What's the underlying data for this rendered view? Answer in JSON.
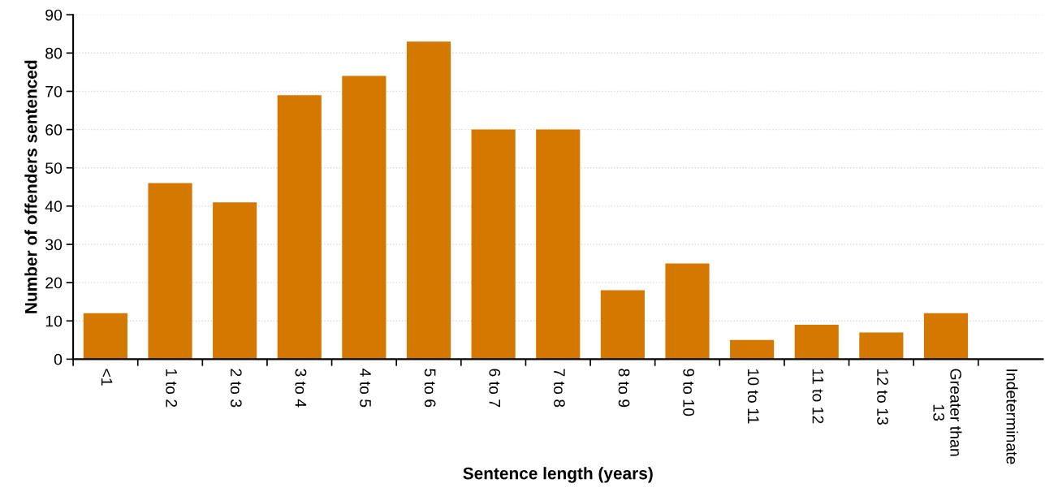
{
  "chart_data": {
    "type": "bar",
    "xlabel": "Sentence length (years)",
    "ylabel": "Number of offenders sentenced",
    "categories": [
      "<1",
      "1 to 2",
      "2 to 3",
      "3 to 4",
      "4 to 5",
      "5 to 6",
      "6 to 7",
      "7 to 8",
      "8 to 9",
      "9 to 10",
      "10 to 11",
      "11 to 12",
      "12 to 13",
      "Greater than 13",
      "Indeterminate"
    ],
    "values": [
      12,
      46,
      41,
      69,
      74,
      83,
      60,
      60,
      18,
      25,
      5,
      9,
      7,
      12,
      0
    ],
    "color": "#d47800",
    "ylim": [
      0,
      90
    ],
    "yticks": [
      0,
      10,
      20,
      30,
      40,
      50,
      60,
      70,
      80,
      90
    ],
    "grid": "y",
    "legend": false
  }
}
